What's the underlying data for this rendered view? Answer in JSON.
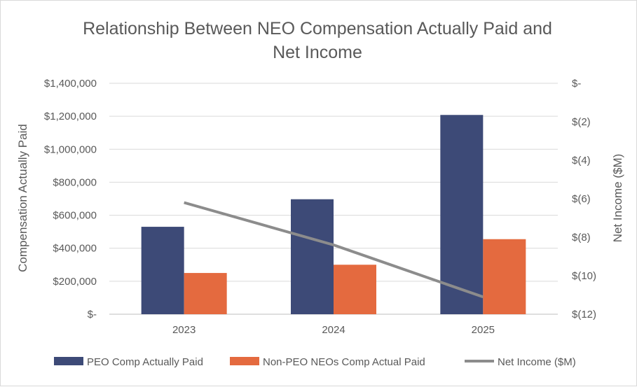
{
  "chart_data": {
    "type": "bar",
    "title_lines": [
      "Relationship Between NEO Compensation Actually Paid and",
      "Net Income"
    ],
    "categories": [
      "2023",
      "2024",
      "2025"
    ],
    "series": [
      {
        "name": "PEO Comp Actually Paid",
        "type": "bar",
        "axis": "left",
        "color": "#3d4a77",
        "values": [
          530000,
          697000,
          1208000
        ]
      },
      {
        "name": "Non-PEO NEOs Comp Actual Paid",
        "type": "bar",
        "axis": "left",
        "color": "#e46a3f",
        "values": [
          250000,
          300000,
          455000
        ]
      },
      {
        "name": "Net Income ($M)",
        "type": "line",
        "axis": "right",
        "color": "#8c8c8c",
        "values": [
          -6.2,
          -8.4,
          -11.1
        ]
      }
    ],
    "ylabel": "Compensation Actually Paid",
    "y2label": "Net Income ($M)",
    "ylim": [
      0,
      1400000
    ],
    "y2lim": [
      -12,
      0
    ],
    "yticks": [
      "$-",
      "$200,000",
      "$400,000",
      "$600,000",
      "$800,000",
      "$1,000,000",
      "$1,200,000",
      "$1,400,000"
    ],
    "y2ticks": [
      "$-",
      "$(2)",
      "$(4)",
      "$(6)",
      "$(8)",
      "$(10)",
      "$(12)"
    ],
    "grid": true,
    "legend_position": "bottom"
  }
}
